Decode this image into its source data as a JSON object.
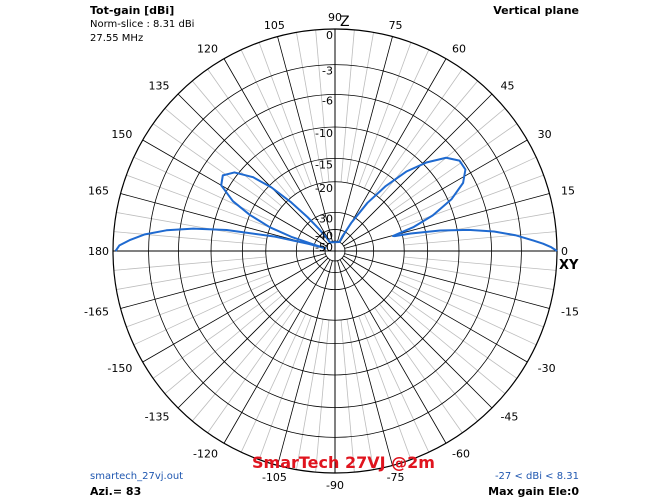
{
  "header": {
    "quantity": "Tot-gain [dBi]",
    "norm_slice": "Norm-slice : 8.31 dBi",
    "frequency": "27.55 MHz",
    "plane": "Vertical plane"
  },
  "footer": {
    "file": "smartech_27vj.out",
    "azimuth": "Azi.= 83",
    "title": "SmarTech 27VJ @2m",
    "range": "-27 < dBi < 8.31",
    "max_gain": "Max gain Ele:0"
  },
  "colors": {
    "pattern": "#1f6ad0",
    "grid": "#000000",
    "minor_grid": "#bdbdbd",
    "title": "#e0141e",
    "info": "#1f57b0"
  },
  "chart_data": {
    "type": "polar",
    "title": "SmarTech 27VJ @2m",
    "axis_labels": {
      "z": "Z",
      "xy": "XY"
    },
    "angle_labels": [
      "0",
      "15",
      "30",
      "45",
      "60",
      "75",
      "90",
      "105",
      "120",
      "135",
      "150",
      "165",
      "180",
      "-165",
      "-150",
      "-135",
      "-120",
      "-105",
      "-90",
      "-75",
      "-60",
      "-45",
      "-30",
      "-15"
    ],
    "radial_ticks": [
      {
        "label": "0",
        "db": 0
      },
      {
        "label": "-3",
        "db": -3
      },
      {
        "label": "-6",
        "db": -6
      },
      {
        "label": "-10",
        "db": -10
      },
      {
        "label": "-15",
        "db": -15
      },
      {
        "label": "-20",
        "db": -20
      },
      {
        "label": "-30",
        "db": -30
      },
      {
        "label": "-40",
        "db": -40
      },
      {
        "label": "-50",
        "db": -50
      }
    ],
    "minor_angle_step_deg": 5,
    "major_angle_step_deg": 15,
    "series": [
      {
        "points": [
          {
            "elev": 0,
            "db": 0
          },
          {
            "elev": 1,
            "db": -0.45
          },
          {
            "elev": 2,
            "db": -1.1
          },
          {
            "elev": 3,
            "db": -1.9
          },
          {
            "elev": 5,
            "db": -3.5
          },
          {
            "elev": 7,
            "db": -5.6
          },
          {
            "elev": 9,
            "db": -8.5
          },
          {
            "elev": 11,
            "db": -12.5
          },
          {
            "elev": 13,
            "db": -18
          },
          {
            "elev": 14,
            "db": -22
          },
          {
            "elev": 14.5,
            "db": -22.5
          },
          {
            "elev": 15,
            "db": -21.5
          },
          {
            "elev": 17,
            "db": -17
          },
          {
            "elev": 20,
            "db": -13
          },
          {
            "elev": 24,
            "db": -9.5
          },
          {
            "elev": 28,
            "db": -7.3
          },
          {
            "elev": 32,
            "db": -6.3
          },
          {
            "elev": 36,
            "db": -6.3
          },
          {
            "elev": 40,
            "db": -7.3
          },
          {
            "elev": 44,
            "db": -9.5
          },
          {
            "elev": 48,
            "db": -12.5
          },
          {
            "elev": 52,
            "db": -17
          },
          {
            "elev": 56,
            "db": -23
          },
          {
            "elev": 60,
            "db": -33
          },
          {
            "elev": 63,
            "db": -44
          },
          {
            "elev": 64,
            "db": -50
          },
          {
            "elev": 120,
            "db": -50
          },
          {
            "elev": 123,
            "db": -44
          },
          {
            "elev": 126,
            "db": -36
          },
          {
            "elev": 129,
            "db": -28
          },
          {
            "elev": 132,
            "db": -21
          },
          {
            "elev": 135,
            "db": -15.5
          },
          {
            "elev": 138,
            "db": -12
          },
          {
            "elev": 142,
            "db": -9.5
          },
          {
            "elev": 146,
            "db": -8.5
          },
          {
            "elev": 150,
            "db": -9
          },
          {
            "elev": 154,
            "db": -11.5
          },
          {
            "elev": 157,
            "db": -15
          },
          {
            "elev": 160,
            "db": -20
          },
          {
            "elev": 162,
            "db": -27
          },
          {
            "elev": 163.5,
            "db": -44
          },
          {
            "elev": 164,
            "db": -50
          },
          {
            "elev": 165,
            "db": -36
          },
          {
            "elev": 166.5,
            "db": -22
          },
          {
            "elev": 169,
            "db": -12
          },
          {
            "elev": 171,
            "db": -7.5
          },
          {
            "elev": 173,
            "db": -4.6
          },
          {
            "elev": 175,
            "db": -2.6
          },
          {
            "elev": 177,
            "db": -1.3
          },
          {
            "elev": 178.5,
            "db": -0.5
          },
          {
            "elev": 180,
            "db": -0.2
          }
        ]
      }
    ]
  }
}
